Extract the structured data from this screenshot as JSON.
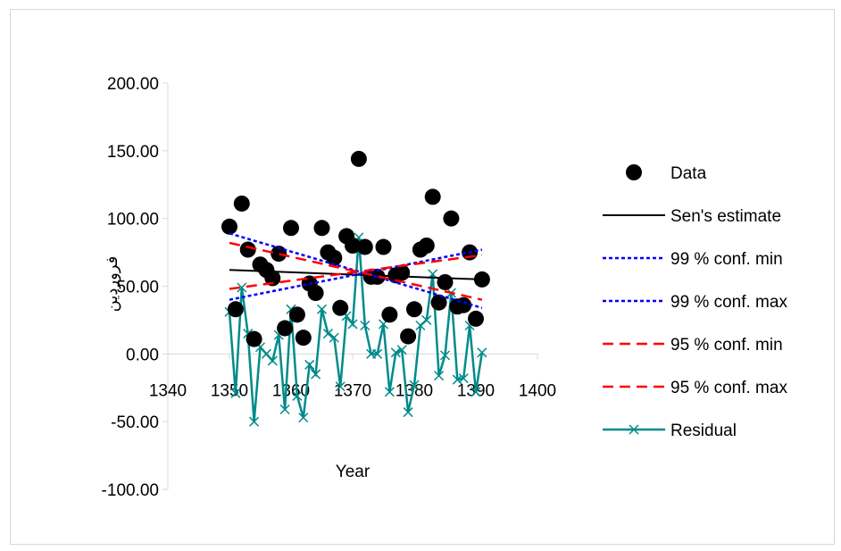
{
  "chart_data": {
    "type": "scatter",
    "xlabel": "Year",
    "ylabel": "فروردین",
    "xlim": [
      1340,
      1400
    ],
    "ylim": [
      -100,
      200
    ],
    "x_ticks": [
      "1340",
      "1350",
      "1360",
      "1370",
      "1380",
      "1390",
      "1400"
    ],
    "y_ticks": [
      "-100.00",
      "-50.00",
      "0.00",
      "50.00",
      "100.00",
      "150.00",
      "200.00"
    ],
    "legend_position": "right",
    "colors": {
      "data": "#000000",
      "sen": "#000000",
      "conf99": "#0000ff",
      "conf95": "#ff0000",
      "residual": "#008b8b"
    },
    "series": [
      {
        "name": "Data",
        "kind": "marker",
        "x": [
          1350,
          1351,
          1352,
          1353,
          1354,
          1355,
          1356,
          1357,
          1358,
          1359,
          1360,
          1361,
          1362,
          1363,
          1364,
          1365,
          1366,
          1367,
          1368,
          1369,
          1370,
          1371,
          1372,
          1373,
          1374,
          1375,
          1376,
          1377,
          1378,
          1379,
          1380,
          1381,
          1382,
          1383,
          1384,
          1385,
          1386,
          1387,
          1388,
          1389,
          1390,
          1391
        ],
        "y": [
          94,
          33,
          111,
          77,
          11,
          66,
          62,
          56,
          74,
          19,
          93,
          29,
          12,
          52,
          45,
          93,
          75,
          71,
          34,
          87,
          80,
          144,
          79,
          57,
          57,
          79,
          29,
          58,
          60,
          13,
          33,
          77,
          80,
          116,
          38,
          53,
          100,
          35,
          36,
          75,
          26,
          55
        ]
      },
      {
        "name": "Sen's estimate",
        "kind": "line",
        "x": [
          1350,
          1391
        ],
        "y": [
          62,
          55
        ]
      },
      {
        "name": "99 % conf. min",
        "kind": "dotted",
        "x": [
          1350,
          1391
        ],
        "y": [
          89,
          34
        ]
      },
      {
        "name": "99 % conf. max",
        "kind": "dotted",
        "x": [
          1350,
          1391
        ],
        "y": [
          40,
          77
        ]
      },
      {
        "name": "95 % conf. min",
        "kind": "dashed",
        "x": [
          1350,
          1391
        ],
        "y": [
          82,
          40
        ]
      },
      {
        "name": "95 % conf. max",
        "kind": "dashed",
        "x": [
          1350,
          1391
        ],
        "y": [
          48,
          73
        ]
      },
      {
        "name": "Residual",
        "kind": "line-x",
        "x": [
          1350,
          1351,
          1352,
          1353,
          1354,
          1355,
          1356,
          1357,
          1358,
          1359,
          1360,
          1361,
          1362,
          1363,
          1364,
          1365,
          1366,
          1367,
          1368,
          1369,
          1370,
          1371,
          1372,
          1373,
          1374,
          1375,
          1376,
          1377,
          1378,
          1379,
          1380,
          1381,
          1382,
          1383,
          1384,
          1385,
          1386,
          1387,
          1388,
          1389,
          1390,
          1391
        ],
        "y": [
          31,
          -29,
          49,
          15,
          -50,
          5,
          0,
          -5,
          14,
          -41,
          33,
          -31,
          -47,
          -8,
          -15,
          33,
          15,
          12,
          -24,
          28,
          22,
          86,
          21,
          0,
          0,
          22,
          -28,
          1,
          3,
          -43,
          -23,
          21,
          25,
          59,
          -16,
          -1,
          45,
          -19,
          -18,
          21,
          -28,
          1
        ]
      }
    ]
  }
}
